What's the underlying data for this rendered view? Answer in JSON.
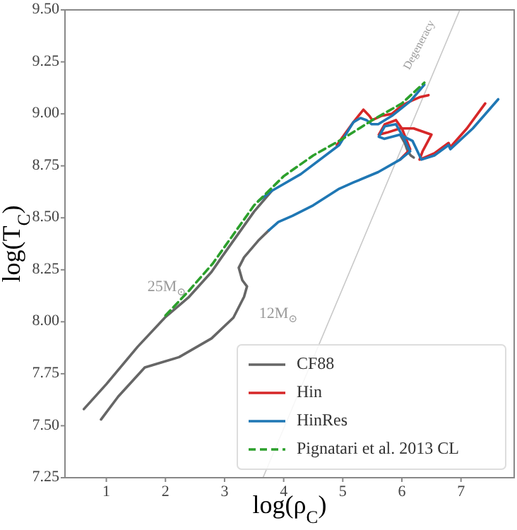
{
  "chart_data": {
    "type": "line",
    "xlabel": "log(ρ$_{C}$)",
    "ylabel": "log(T$_{C}$)",
    "xlim": [
      0.3,
      7.9
    ],
    "ylim": [
      7.25,
      9.5
    ],
    "xticks": [
      1,
      2,
      3,
      4,
      5,
      6,
      7
    ],
    "yticks": [
      {
        "value": 7.25,
        "label": "7.25"
      },
      {
        "value": 7.5,
        "label": "7.50"
      },
      {
        "value": 7.75,
        "label": "7.75"
      },
      {
        "value": 8,
        "label": "8.00"
      },
      {
        "value": 8.25,
        "label": "8.25"
      },
      {
        "value": 8.5,
        "label": "8.50"
      },
      {
        "value": 8.75,
        "label": "8.75"
      },
      {
        "value": 9,
        "label": "9.00"
      },
      {
        "value": 9.25,
        "label": "9.25"
      },
      {
        "value": 9.5,
        "label": "9.50"
      }
    ],
    "legend": "bottom right",
    "grid": false,
    "series": [
      {
        "type": "line",
        "color": "#c8c8c8",
        "x": [
          3.65,
          6.98
        ],
        "values": [
          7.25,
          9.5
        ]
      },
      {
        "name": "CF88",
        "color": "#666666",
        "x": [
          0.62,
          1.0,
          1.53,
          1.99,
          2.4,
          2.78,
          2.95,
          3.5,
          3.8,
          null,
          0.91,
          1.2,
          1.65,
          2.23,
          2.78,
          3.15,
          3.33,
          3.38,
          3.3,
          3.24,
          3.33,
          3.57,
          3.75,
          null,
          5.97,
          6.05,
          6.1,
          6.15,
          6.2
        ],
        "values": [
          7.58,
          7.7,
          7.88,
          8.02,
          8.12,
          8.24,
          8.31,
          8.53,
          8.63,
          null,
          7.53,
          7.64,
          7.78,
          7.83,
          7.92,
          8.02,
          8.12,
          8.17,
          8.2,
          8.26,
          8.31,
          8.39,
          8.44,
          null,
          8.9,
          8.86,
          8.82,
          8.8,
          8.79
        ]
      },
      {
        "name": "Hin",
        "color": "#d62728",
        "x": [
          4.9,
          5.18,
          5.35,
          5.45,
          5.5,
          5.65,
          5.83,
          6.0,
          6.14,
          6.3,
          6.45,
          null,
          5.97,
          6.14,
          6.0,
          5.9,
          5.71,
          5.61,
          5.75,
          5.97,
          6.2,
          6.5,
          6.35,
          6.3,
          6.55,
          6.79,
          6.82,
          7.1,
          7.41
        ],
        "values": [
          8.85,
          8.96,
          9.02,
          8.99,
          8.97,
          8.99,
          9.0,
          9.04,
          9.06,
          9.08,
          9.09,
          null,
          8.78,
          8.83,
          8.93,
          8.97,
          8.95,
          8.9,
          8.91,
          8.93,
          8.93,
          8.9,
          8.82,
          8.78,
          8.81,
          8.86,
          8.84,
          8.93,
          9.05
        ]
      },
      {
        "name": "HinRes",
        "color": "#1f77b4",
        "x": [
          3.57,
          3.8,
          4.29,
          4.94,
          5.18,
          5.3,
          5.4,
          5.49,
          5.6,
          5.83,
          6.14,
          6.38,
          null,
          3.75,
          3.91,
          4.15,
          4.5,
          4.94,
          5.18,
          5.6,
          5.97,
          6.14,
          6.0,
          5.9,
          5.71,
          5.61,
          5.7,
          5.97,
          6.18,
          6.33,
          6.55,
          6.79,
          6.82,
          7.2,
          7.63
        ],
        "values": [
          8.58,
          8.63,
          8.71,
          8.85,
          8.96,
          8.98,
          8.97,
          8.95,
          8.95,
          8.99,
          9.06,
          9.14,
          null,
          8.44,
          8.48,
          8.51,
          8.56,
          8.64,
          8.67,
          8.72,
          8.78,
          8.82,
          8.9,
          8.95,
          8.94,
          8.89,
          8.88,
          8.9,
          8.87,
          8.78,
          8.8,
          8.85,
          8.83,
          8.93,
          9.07
        ]
      },
      {
        "name": "Pignatari et al. 2013 CL",
        "color": "#2ca02c",
        "line_style": "dashed",
        "x": [
          2.0,
          2.4,
          2.8,
          3.0,
          3.5,
          4.0,
          4.5,
          5.0,
          5.5,
          6.0,
          6.38
        ],
        "values": [
          8.03,
          8.15,
          8.28,
          8.36,
          8.56,
          8.7,
          8.8,
          8.88,
          8.97,
          9.05,
          9.15
        ]
      }
    ],
    "annotations": [
      "25M$_{⊙}$",
      "12M$_{⊙}$",
      "Degeneracy"
    ]
  }
}
